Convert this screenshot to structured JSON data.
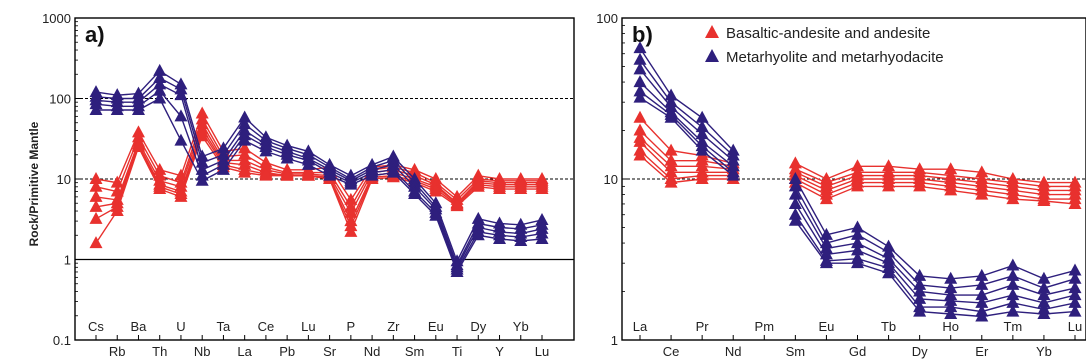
{
  "chart_data": [
    {
      "type": "line",
      "panel_label": "a)",
      "ylabel": "Rock/Primitive Mantle",
      "yscale": "log",
      "ylim": [
        0.1,
        1000
      ],
      "ytick_labels": [
        "0.1",
        "1",
        "10",
        "100",
        "1000"
      ],
      "ytick_values": [
        0.1,
        1,
        10,
        100,
        1000
      ],
      "reference_lines": [
        {
          "y": 1,
          "style": "solid"
        },
        {
          "y": 10,
          "style": "dashed"
        },
        {
          "y": 100,
          "style": "dashed"
        }
      ],
      "categories": [
        "Cs",
        "Rb",
        "Ba",
        "Th",
        "U",
        "Nb",
        "Ta",
        "La",
        "Ce",
        "Pb",
        "Lu",
        "Sr",
        "P",
        "Nd",
        "Zr",
        "Sm",
        "Eu",
        "Ti",
        "Dy",
        "Y",
        "Yb",
        "Lu"
      ],
      "series": [
        {
          "name": "Basaltic-andesite and andesite",
          "color": "#e8312e",
          "lines": [
            [
              10,
              9,
              38,
              13,
              11,
              65,
              22,
              24,
              16,
              13,
              13,
              14,
              5.5,
              14,
              15,
              13,
              10,
              6,
              11,
              10,
              10,
              10
            ],
            [
              8,
              7,
              33,
              11,
              9,
              55,
              19,
              20,
              14,
              12,
              12,
              12,
              4.5,
              13,
              14,
              12,
              9,
              5.5,
              10,
              9.5,
              9.5,
              9.5
            ],
            [
              6,
              5.5,
              29,
              9.5,
              8,
              48,
              17,
              17,
              13,
              11.5,
              11.5,
              11,
              3.8,
              12,
              13,
              11,
              8.5,
              5,
              9.5,
              9,
              9,
              9
            ],
            [
              4.5,
              5,
              27,
              8.5,
              7,
              42,
              16,
              15,
              12,
              11,
              11,
              10.5,
              3,
              11,
              12,
              10,
              8,
              5,
              9,
              8.5,
              8.5,
              8.5
            ],
            [
              3.2,
              4.5,
              26,
              8,
              6.5,
              38,
              15,
              13,
              11.5,
              11,
              11,
              10,
              2.6,
              10.5,
              11,
              9.5,
              7.5,
              4.8,
              8.5,
              8,
              8,
              8
            ],
            [
              1.6,
              4,
              25,
              7.5,
              6,
              34,
              14,
              12,
              11,
              11,
              11,
              10,
              2.2,
              10,
              10.5,
              9,
              7,
              4.6,
              8,
              7.5,
              7.5,
              7.5
            ]
          ]
        },
        {
          "name": "Metarhyolite and metarhyodacite",
          "color": "#2e1f7d",
          "lines": [
            [
              120,
              110,
              115,
              220,
              150,
              19,
              24,
              58,
              33,
              26,
              22,
              15,
              11,
              15,
              19,
              10,
              5,
              0.95,
              3.2,
              2.8,
              2.7,
              3.1
            ],
            [
              105,
              100,
              100,
              180,
              130,
              16,
              20,
              48,
              30,
              24,
              20,
              14,
              10,
              14,
              17,
              9,
              4.5,
              0.85,
              2.8,
              2.5,
              2.4,
              2.7
            ],
            [
              95,
              90,
              90,
              150,
              110,
              13,
              17,
              40,
              27,
              22,
              18,
              13,
              9.5,
              13,
              15,
              8,
              4.2,
              0.8,
              2.5,
              2.2,
              2.1,
              2.4
            ],
            [
              85,
              80,
              80,
              125,
              60,
              11,
              15,
              35,
              25,
              20,
              17,
              12,
              9,
              12,
              13,
              7,
              3.8,
              0.75,
              2.2,
              2,
              1.9,
              2.1
            ],
            [
              72,
              72,
              72,
              100,
              30,
              9.5,
              13,
              30,
              22,
              18,
              15,
              11,
              8.5,
              11,
              12,
              6.5,
              3.5,
              0.7,
              2,
              1.8,
              1.7,
              1.8
            ]
          ]
        }
      ]
    },
    {
      "type": "line",
      "panel_label": "b)",
      "yscale": "log",
      "ylim": [
        1,
        100
      ],
      "ytick_labels": [
        "1",
        "10",
        "100"
      ],
      "ytick_values": [
        1,
        10,
        100
      ],
      "reference_lines": [
        {
          "y": 10,
          "style": "dashed"
        }
      ],
      "categories": [
        "La",
        "Ce",
        "Pr",
        "Nd",
        "Pm",
        "Sm",
        "Eu",
        "Gd",
        "Tb",
        "Dy",
        "Ho",
        "Er",
        "Tm",
        "Yb",
        "Lu"
      ],
      "missing_index": 4,
      "series": [
        {
          "name": "Basaltic-andesite and andesite",
          "color": "#e8312e",
          "lines": [
            [
              24,
              15,
              14,
              12.5,
              null,
              12.5,
              10,
              12,
              12,
              11.5,
              11.5,
              11,
              10,
              9.5,
              9.5
            ],
            [
              20,
              13,
              13,
              12,
              null,
              11.5,
              9.5,
              11,
              11,
              11,
              10.5,
              10,
              9.5,
              9,
              9
            ],
            [
              18,
              12,
              12,
              11.5,
              null,
              11,
              9,
              10.5,
              10.5,
              10.5,
              10,
              9.5,
              9,
              8.5,
              8.5
            ],
            [
              17,
              11,
              11,
              11,
              null,
              10.5,
              8.5,
              10,
              10,
              10,
              9.5,
              9,
              8.5,
              8,
              8
            ],
            [
              15,
              10,
              10.5,
              10.5,
              null,
              10,
              8,
              9.5,
              9.5,
              9.5,
              9,
              8.5,
              8,
              7.5,
              7.5
            ],
            [
              14,
              9.5,
              10,
              10,
              null,
              9.5,
              7.5,
              9,
              9,
              9,
              8.5,
              8,
              7.5,
              7.3,
              7
            ]
          ]
        },
        {
          "name": "Metarhyolite and metarhyodacite",
          "color": "#2e1f7d",
          "lines": [
            [
              65,
              33,
              24,
              15,
              null,
              10,
              4.5,
              5,
              3.8,
              2.5,
              2.4,
              2.5,
              2.9,
              2.4,
              2.7
            ],
            [
              55,
              30,
              21,
              14,
              null,
              9,
              4,
              4.5,
              3.5,
              2.2,
              2.1,
              2.2,
              2.5,
              2.1,
              2.4
            ],
            [
              48,
              28,
              19,
              13,
              null,
              8,
              3.7,
              4,
              3.2,
              2,
              1.9,
              1.9,
              2.2,
              1.9,
              2.1
            ],
            [
              40,
              26,
              17,
              12,
              null,
              7,
              3.4,
              3.6,
              3,
              1.8,
              1.75,
              1.7,
              1.9,
              1.7,
              1.9
            ],
            [
              35,
              25,
              16,
              11,
              null,
              6,
              3.1,
              3.2,
              2.8,
              1.6,
              1.6,
              1.5,
              1.7,
              1.55,
              1.7
            ],
            [
              32,
              24,
              15,
              10.5,
              null,
              5.5,
              3,
              3,
              2.6,
              1.5,
              1.45,
              1.4,
              1.5,
              1.45,
              1.5
            ]
          ]
        }
      ]
    }
  ],
  "legend": [
    {
      "label": "Basaltic-andesite and andesite",
      "color": "#e8312e"
    },
    {
      "label": "Metarhyolite and metarhyodacite",
      "color": "#2e1f7d"
    }
  ]
}
